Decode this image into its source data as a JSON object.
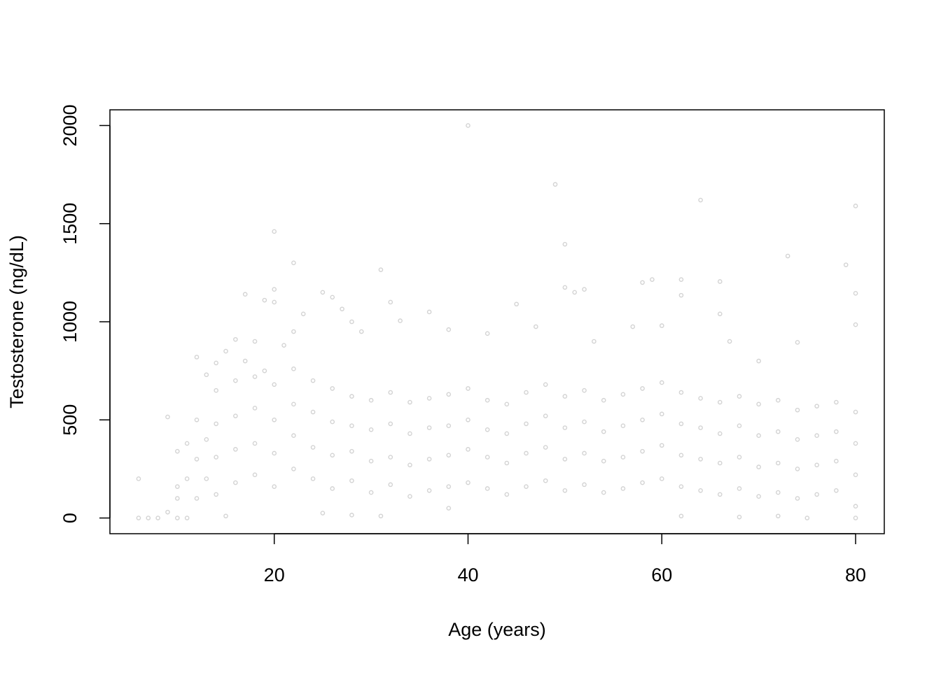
{
  "chart_data": {
    "type": "scatter",
    "x_label": "Age (years)",
    "y_label": "Testosterone (ng/dL)",
    "color": "#d3d3d3",
    "xlim": [
      3.04,
      82.96
    ],
    "ylim": [
      -80,
      2080
    ],
    "xticks": [
      20,
      40,
      60,
      80
    ],
    "yticks": [
      0,
      500,
      1000,
      1500,
      2000
    ],
    "grid": false,
    "x": [
      6,
      6,
      7,
      8,
      9,
      9,
      10,
      10,
      10,
      10,
      11,
      11,
      11,
      12,
      12,
      12,
      12,
      13,
      13,
      13,
      14,
      15,
      15,
      16,
      17,
      17,
      18,
      19,
      19,
      20,
      20,
      20,
      21,
      22,
      22,
      23,
      25,
      25,
      26,
      27,
      28,
      28,
      29,
      31,
      31,
      32,
      33,
      36,
      38,
      38,
      40,
      42,
      45,
      47,
      49,
      50,
      50,
      51,
      52,
      53,
      57,
      58,
      59,
      60,
      62,
      62,
      62,
      64,
      66,
      66,
      67,
      68,
      70,
      72,
      73,
      74,
      75,
      79,
      80,
      80,
      80,
      80,
      14,
      14,
      14,
      14,
      16,
      16,
      16,
      16,
      18,
      18,
      18,
      18,
      20,
      20,
      20,
      20,
      22,
      22,
      22,
      22,
      24,
      24,
      24,
      24,
      26,
      26,
      26,
      26,
      28,
      28,
      28,
      28,
      30,
      30,
      30,
      30,
      32,
      32,
      32,
      32,
      34,
      34,
      34,
      34,
      36,
      36,
      36,
      36,
      38,
      38,
      38,
      38,
      40,
      40,
      40,
      40,
      42,
      42,
      42,
      42,
      44,
      44,
      44,
      44,
      46,
      46,
      46,
      46,
      48,
      48,
      48,
      48,
      50,
      50,
      50,
      50,
      52,
      52,
      52,
      52,
      54,
      54,
      54,
      54,
      56,
      56,
      56,
      56,
      58,
      58,
      58,
      58,
      60,
      60,
      60,
      60,
      62,
      62,
      62,
      62,
      64,
      64,
      64,
      64,
      66,
      66,
      66,
      66,
      68,
      68,
      68,
      68,
      70,
      70,
      70,
      70,
      72,
      72,
      72,
      72,
      74,
      74,
      74,
      74,
      76,
      76,
      76,
      76,
      78,
      78,
      78,
      78,
      80,
      80,
      80,
      80
    ],
    "values": [
      200,
      0,
      0,
      0,
      515,
      30,
      0,
      100,
      160,
      340,
      380,
      200,
      0,
      820,
      500,
      300,
      100,
      730,
      400,
      200,
      790,
      850,
      10,
      910,
      1140,
      800,
      900,
      1110,
      750,
      1460,
      1165,
      1100,
      880,
      1300,
      950,
      1040,
      1150,
      25,
      1125,
      1065,
      1000,
      15,
      950,
      1265,
      10,
      1100,
      1005,
      1050,
      960,
      50,
      2000,
      940,
      1090,
      975,
      1700,
      1395,
      1175,
      1150,
      1165,
      900,
      975,
      1200,
      1215,
      980,
      1215,
      1135,
      10,
      1620,
      1205,
      1040,
      900,
      5,
      800,
      10,
      1335,
      895,
      0,
      1290,
      1590,
      1145,
      985,
      0,
      120,
      310,
      480,
      650,
      180,
      350,
      520,
      700,
      220,
      380,
      560,
      720,
      160,
      330,
      500,
      680,
      250,
      420,
      580,
      760,
      200,
      360,
      540,
      700,
      150,
      320,
      490,
      660,
      190,
      340,
      470,
      620,
      130,
      290,
      450,
      600,
      170,
      310,
      480,
      640,
      110,
      270,
      430,
      590,
      140,
      300,
      460,
      610,
      160,
      320,
      470,
      630,
      180,
      350,
      500,
      660,
      150,
      310,
      450,
      600,
      120,
      280,
      430,
      580,
      160,
      330,
      480,
      640,
      190,
      360,
      520,
      680,
      140,
      300,
      460,
      620,
      170,
      330,
      490,
      650,
      130,
      290,
      440,
      600,
      150,
      310,
      470,
      630,
      180,
      340,
      500,
      660,
      200,
      370,
      530,
      690,
      160,
      320,
      480,
      640,
      140,
      300,
      460,
      610,
      120,
      280,
      430,
      590,
      150,
      310,
      470,
      620,
      110,
      260,
      420,
      580,
      130,
      280,
      440,
      600,
      100,
      250,
      400,
      550,
      120,
      270,
      420,
      570,
      140,
      290,
      440,
      590,
      60,
      220,
      380,
      540
    ]
  }
}
